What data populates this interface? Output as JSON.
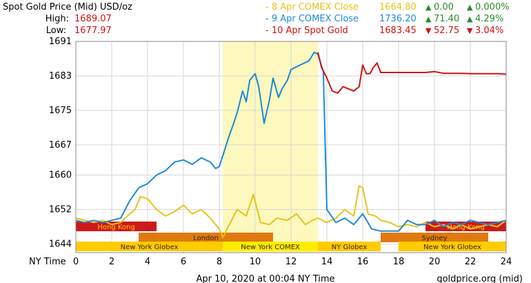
{
  "header": {
    "title": "Spot Gold Price (Mid) USD/oz",
    "high_label": "High:",
    "high_value": "1689.07",
    "low_label": "Low:",
    "low_value": "1677.97"
  },
  "legend": [
    {
      "label": "- 8 Apr COMEX Close",
      "price": "1664.80",
      "arrow": "▲",
      "change": "0.00",
      "pct": "0.000%",
      "color": "#e8c21a",
      "change_color": "#2a8a2a"
    },
    {
      "label": "- 9 Apr COMEX Close",
      "price": "1736.20",
      "arrow": "▲",
      "change": "71.40",
      "pct": "4.29%",
      "color": "#1e88d8",
      "change_color": "#2a8a2a"
    },
    {
      "label": "- 10 Apr Spot Gold",
      "price": "1683.45",
      "arrow": "▼",
      "change": "52.75",
      "pct": "3.04%",
      "color": "#d01010",
      "change_color": "#d01010"
    }
  ],
  "footer": {
    "timestamp": "Apr 10, 2020 at 00:04 NY Time",
    "source": "goldprice.org (mid)"
  },
  "sessions": [
    {
      "label": "Hong Kong",
      "start": 0,
      "end": 4.5,
      "color": "#cc1a1a",
      "text_color": "#ffcc00"
    },
    {
      "label": "Hong Kong",
      "start": 19.5,
      "end": 24,
      "color": "#cc1a1a",
      "text_color": "#ffcc00"
    },
    {
      "label": "London",
      "start": 3.5,
      "end": 11,
      "color": "#e07a10",
      "text_color": "#3a2000"
    },
    {
      "label": "Sydney",
      "start": 17,
      "end": 23,
      "color": "#e07a10",
      "text_color": "#3a2000"
    },
    {
      "label": "New York Globex",
      "start": 0,
      "end": 8.2,
      "color": "#ffcc00",
      "text_color": "#3a2000"
    },
    {
      "label": "New York COMEX",
      "start": 8.2,
      "end": 13.5,
      "color": "#ffee00",
      "text_color": "#3a2000"
    },
    {
      "label": "NY Globex",
      "start": 13.5,
      "end": 17,
      "color": "#ffcc00",
      "text_color": "#3a2000"
    },
    {
      "label": "New York Globex",
      "start": 18,
      "end": 24,
      "color": "#ffcc00",
      "text_color": "#3a2000"
    }
  ],
  "chart_data": {
    "type": "line",
    "xlabel": "NY Time",
    "xlim": [
      0,
      24
    ],
    "ylim": [
      1642,
      1691
    ],
    "x_ticks": [
      0,
      2,
      4,
      6,
      8,
      10,
      12,
      14,
      16,
      18,
      20,
      22,
      24
    ],
    "y_ticks": [
      1644,
      1652,
      1660,
      1667,
      1675,
      1683,
      1691
    ],
    "grid": true,
    "comex_session": [
      8.2,
      13.5
    ],
    "series": [
      {
        "name": "8 Apr COMEX Close",
        "color": "#e8c21a",
        "x": [
          0,
          0.5,
          1,
          1.5,
          2,
          2.5,
          3,
          3.3,
          3.6,
          4,
          4.5,
          5,
          5.5,
          6,
          6.5,
          7,
          7.5,
          8,
          8.2,
          8.5,
          9,
          9.5,
          9.9,
          10.3,
          10.8,
          11.2,
          11.8,
          12.3,
          12.8,
          13.2,
          13.5,
          14,
          14.5,
          15,
          15.5,
          15.8,
          16,
          16.3,
          16.7,
          17,
          17.5,
          18,
          18.5,
          19,
          19.5,
          20,
          20.5,
          21,
          21.5,
          22,
          22.5,
          23,
          23.5,
          24
        ],
        "y": [
          1650,
          1649.5,
          1649,
          1649.5,
          1648.5,
          1649,
          1651,
          1652,
          1655,
          1654.5,
          1652,
          1650.5,
          1651.5,
          1653,
          1651,
          1652,
          1650,
          1647.5,
          1645.5,
          1648,
          1652,
          1650.5,
          1655.5,
          1649,
          1648.5,
          1650,
          1649.5,
          1651,
          1648.5,
          1649.5,
          1650,
          1649,
          1650,
          1652,
          1650.5,
          1657.5,
          1657,
          1651,
          1650.5,
          1649.5,
          1649,
          1648,
          1648.5,
          1648,
          1649,
          1648,
          1648.5,
          1647.5,
          1648.5,
          1647.5,
          1648,
          1648.5,
          1648,
          1649.5
        ]
      },
      {
        "name": "9 Apr COMEX Close",
        "color": "#1e88d8",
        "x": [
          0,
          0.5,
          1,
          1.5,
          2,
          2.5,
          3,
          3.5,
          4,
          4.5,
          5,
          5.5,
          6,
          6.5,
          7,
          7.5,
          7.8,
          8,
          8.2,
          8.5,
          8.8,
          9,
          9.3,
          9.5,
          9.7,
          10,
          10.2,
          10.5,
          10.8,
          11,
          11.3,
          11.5,
          11.8,
          12,
          12.5,
          13,
          13.3,
          13.5,
          13.8,
          14,
          14.5,
          15,
          15.5,
          16,
          16.5,
          17,
          17.5,
          18,
          18.5,
          19,
          19.5,
          20,
          20.5,
          21,
          21.5,
          22,
          22.5,
          23,
          23.5,
          24
        ],
        "y": [
          1649.5,
          1649,
          1649.5,
          1649,
          1649.5,
          1650,
          1654,
          1657,
          1658,
          1660,
          1661,
          1663,
          1663.5,
          1662.5,
          1664,
          1663,
          1661.5,
          1662,
          1664.5,
          1668.5,
          1672,
          1674.5,
          1679.5,
          1677,
          1682,
          1683.5,
          1680.5,
          1672,
          1677.5,
          1682.5,
          1678,
          1680,
          1682,
          1684.5,
          1685.5,
          1686.5,
          1688.5,
          1688,
          1684,
          1652,
          1649,
          1650,
          1648.5,
          1651,
          1647.5,
          1647,
          1647,
          1647,
          1649.5,
          1648.5,
          1648.5,
          1649.5,
          1648,
          1649,
          1648.5,
          1649.5,
          1649,
          1648.5,
          1649,
          1649.5
        ]
      },
      {
        "name": "10 Apr Spot Gold",
        "color": "#d01010",
        "x": [
          13.5,
          13.7,
          14,
          14.3,
          14.6,
          14.9,
          15.2,
          15.5,
          15.8,
          16,
          16.2,
          16.4,
          16.6,
          16.8,
          17,
          17.5,
          18,
          18.5,
          19,
          19.5,
          20,
          20.5,
          21,
          21.5,
          22,
          22.5,
          23,
          23.5,
          24
        ],
        "y": [
          1688.5,
          1685,
          1682.5,
          1679.5,
          1679,
          1680.5,
          1680,
          1679.5,
          1680.5,
          1685.5,
          1683.5,
          1683.5,
          1685,
          1686,
          1683.8,
          1683.8,
          1683.8,
          1683.8,
          1683.8,
          1683.8,
          1684,
          1683.6,
          1683.6,
          1683.6,
          1683.5,
          1683.5,
          1683.5,
          1683.5,
          1683.4
        ]
      }
    ]
  }
}
